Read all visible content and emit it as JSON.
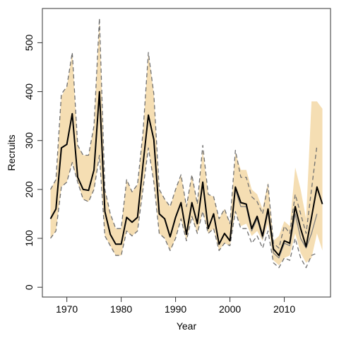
{
  "chart_data": {
    "type": "line",
    "title": "",
    "xlabel": "Year",
    "ylabel": "Recruits",
    "xlim": [
      1965.5,
      2018.5
    ],
    "ylim": [
      -20,
      570
    ],
    "x_ticks": [
      1970,
      1980,
      1990,
      2000,
      2010
    ],
    "x_tick_labels": [
      "1970",
      "1980",
      "1990",
      "2000",
      "2010"
    ],
    "y_ticks": [
      0,
      100,
      200,
      300,
      400,
      500
    ],
    "y_tick_labels": [
      "0",
      "100",
      "200",
      "300",
      "400",
      "500"
    ],
    "grid": false,
    "colors": {
      "band": "#f5deb3",
      "main_line": "#000000",
      "secondary_line": "#808080",
      "dashed_bounds": "#707070"
    },
    "band": {
      "years": [
        1967,
        1968,
        1969,
        1970,
        1971,
        1972,
        1973,
        1974,
        1975,
        1976,
        1977,
        1978,
        1979,
        1980,
        1981,
        1982,
        1983,
        1984,
        1985,
        1986,
        1987,
        1988,
        1989,
        1990,
        1991,
        1992,
        1993,
        1994,
        1995,
        1996,
        1997,
        1998,
        1999,
        2000,
        2001,
        2002,
        2003,
        2004,
        2005,
        2006,
        2007,
        2008,
        2009,
        2010,
        2011,
        2012,
        2013,
        2014,
        2015,
        2016,
        2017
      ],
      "lower": [
        100,
        115,
        205,
        215,
        255,
        215,
        180,
        175,
        200,
        270,
        105,
        85,
        65,
        65,
        115,
        105,
        115,
        200,
        285,
        215,
        110,
        100,
        75,
        100,
        140,
        95,
        145,
        110,
        155,
        110,
        120,
        75,
        90,
        85,
        155,
        125,
        130,
        105,
        115,
        95,
        130,
        55,
        45,
        60,
        65,
        110,
        70,
        50,
        60,
        110,
        75
      ],
      "upper": [
        200,
        220,
        390,
        410,
        480,
        290,
        270,
        270,
        330,
        550,
        200,
        150,
        120,
        120,
        220,
        195,
        210,
        315,
        480,
        395,
        200,
        180,
        165,
        200,
        230,
        165,
        230,
        170,
        280,
        190,
        185,
        140,
        160,
        130,
        275,
        240,
        240,
        200,
        190,
        160,
        215,
        95,
        105,
        135,
        125,
        245,
        200,
        140,
        380,
        380,
        365
      ]
    },
    "series": [
      {
        "style": "solid-black",
        "x": [
          1967,
          1968,
          1969,
          1970,
          1971,
          1972,
          1973,
          1974,
          1975,
          1976,
          1977,
          1978,
          1979,
          1980,
          1981,
          1982,
          1983,
          1984,
          1985,
          1986,
          1987,
          1988,
          1989,
          1990,
          1991,
          1992,
          1993,
          1994,
          1995,
          1996,
          1997,
          1998,
          1999,
          2000,
          2001,
          2002,
          2003,
          2004,
          2005,
          2006,
          2007,
          2008,
          2009,
          2010,
          2011,
          2012,
          2013,
          2014,
          2015,
          2016,
          2017
        ],
        "values": [
          140,
          160,
          285,
          292,
          355,
          225,
          200,
          198,
          240,
          400,
          155,
          108,
          88,
          88,
          143,
          133,
          143,
          250,
          352,
          302,
          150,
          140,
          103,
          143,
          173,
          108,
          173,
          130,
          215,
          120,
          150,
          88,
          110,
          95,
          205,
          173,
          170,
          120,
          145,
          105,
          160,
          78,
          65,
          95,
          90,
          165,
          120,
          83,
          143,
          205,
          170
        ]
      },
      {
        "style": "solid-gray",
        "x": [
          2001,
          2002,
          2003,
          2004,
          2005,
          2006,
          2007,
          2008,
          2009,
          2010,
          2011,
          2012,
          2013,
          2014,
          2015,
          2016
        ],
        "values": [
          200,
          165,
          165,
          115,
          140,
          100,
          155,
          70,
          60,
          90,
          85,
          150,
          100,
          80,
          110,
          150
        ]
      },
      {
        "style": "dashed-upper",
        "x": [
          1967,
          1968,
          1969,
          1970,
          1971,
          1972,
          1973,
          1974,
          1975,
          1976,
          1977,
          1978,
          1979,
          1980,
          1981,
          1982,
          1983,
          1984,
          1985,
          1986,
          1987,
          1988,
          1989,
          1990,
          1991,
          1992,
          1993,
          1994,
          1995,
          1996,
          1997,
          1998,
          1999,
          2000,
          2001,
          2002,
          2003,
          2004,
          2005,
          2006,
          2007,
          2008,
          2009,
          2010,
          2011,
          2012,
          2013,
          2014,
          2015,
          2016
        ],
        "values": [
          200,
          220,
          395,
          410,
          480,
          290,
          270,
          270,
          330,
          550,
          200,
          150,
          120,
          120,
          220,
          195,
          210,
          315,
          480,
          395,
          200,
          180,
          165,
          200,
          230,
          165,
          230,
          170,
          290,
          190,
          185,
          140,
          160,
          130,
          280,
          225,
          225,
          185,
          175,
          150,
          210,
          90,
          80,
          125,
          110,
          190,
          150,
          110,
          200,
          290
        ]
      },
      {
        "style": "dashed-lower",
        "x": [
          1967,
          1968,
          1969,
          1970,
          1971,
          1972,
          1973,
          1974,
          1975,
          1976,
          1977,
          1978,
          1979,
          1980,
          1981,
          1982,
          1983,
          1984,
          1985,
          1986,
          1987,
          1988,
          1989,
          1990,
          1991,
          1992,
          1993,
          1994,
          1995,
          1996,
          1997,
          1998,
          1999,
          2000,
          2001,
          2002,
          2003,
          2004,
          2005,
          2006,
          2007,
          2008,
          2009,
          2010,
          2011,
          2012,
          2013,
          2014,
          2015,
          2016
        ],
        "values": [
          100,
          115,
          205,
          215,
          255,
          215,
          180,
          175,
          200,
          270,
          105,
          85,
          65,
          65,
          115,
          105,
          115,
          200,
          285,
          215,
          110,
          100,
          75,
          100,
          140,
          95,
          145,
          110,
          155,
          110,
          120,
          75,
          90,
          85,
          155,
          120,
          120,
          90,
          105,
          80,
          115,
          50,
          40,
          60,
          55,
          100,
          60,
          40,
          65,
          70
        ]
      }
    ]
  }
}
